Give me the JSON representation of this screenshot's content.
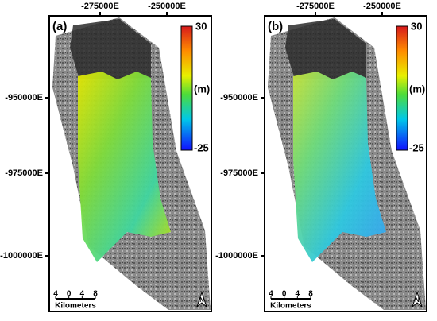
{
  "panels": [
    {
      "label": "(a)",
      "x_ticks": [
        "-275000E",
        "-250000E"
      ],
      "y_ticks": [
        "-950000E",
        "-975000E",
        "-1000000E"
      ],
      "colorbar": {
        "max": "30",
        "unit": "(m)",
        "min": "-25"
      },
      "scale_bar": {
        "ticks": [
          "4",
          "0",
          "4",
          "8"
        ],
        "unit": "Kilometers"
      },
      "north": "N"
    },
    {
      "label": "(b)",
      "x_ticks": [
        "-275000E",
        "-250000E"
      ],
      "y_ticks": [
        "-950000E",
        "-975000E",
        "-1000000E"
      ],
      "colorbar": {
        "max": "30",
        "unit": "(m)",
        "min": "-25"
      },
      "scale_bar": {
        "ticks": [
          "4",
          "0",
          "4",
          "8"
        ],
        "unit": "Kilometers"
      },
      "north": "N"
    }
  ]
}
